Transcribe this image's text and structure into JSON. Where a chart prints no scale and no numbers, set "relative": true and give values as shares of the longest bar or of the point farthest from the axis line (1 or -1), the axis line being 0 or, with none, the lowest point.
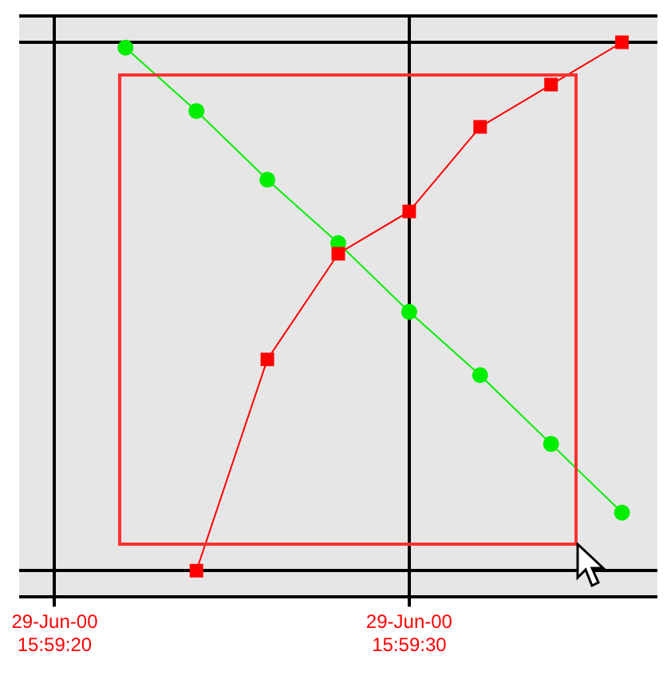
{
  "chart_data": {
    "type": "line",
    "relative": true,
    "grid": true,
    "legend": false,
    "categories": [
      "29-Jun-00 15:59:20",
      null,
      null,
      null,
      null,
      "29-Jun-00 15:59:30",
      null,
      null,
      null
    ],
    "series": [
      {
        "color": "#ff0000",
        "marker": "square",
        "values": [
          null,
          null,
          0,
          0.4,
          0.6,
          0.68,
          0.84,
          0.92,
          1.0
        ]
      },
      {
        "color": "#00ee00",
        "marker": "circle",
        "values": [
          null,
          0.99,
          0.87,
          0.74,
          0.62,
          0.49,
          0.37,
          0.24,
          0.11
        ]
      }
    ]
  }
}
